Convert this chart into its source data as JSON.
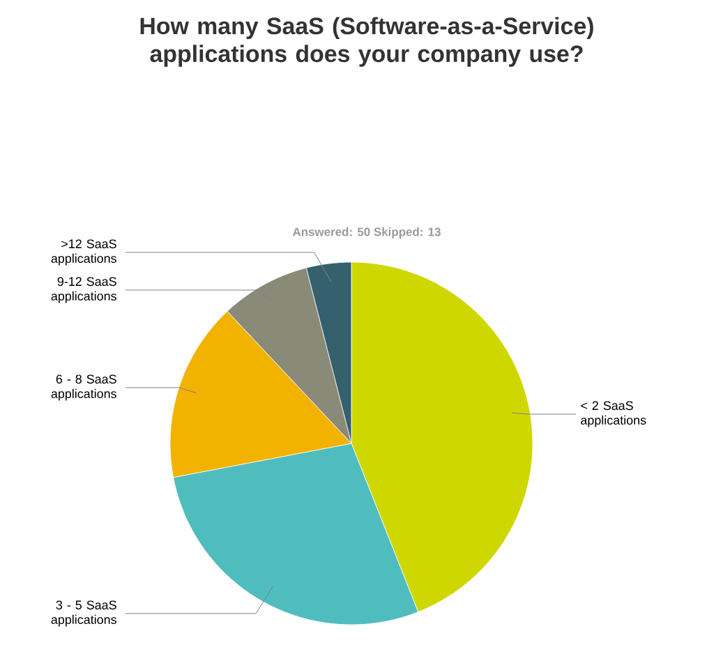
{
  "chart_data": {
    "type": "pie",
    "title": "How many SaaS (Software-as-a-Service) applications does your company use?",
    "subtitle": "Answered: 50   Skipped: 13",
    "categories": [
      "< 2 SaaS applications",
      "3 - 5 SaaS applications",
      "6 - 8 SaaS applications",
      "9-12 SaaS applications",
      ">12 SaaS applications"
    ],
    "values": [
      44,
      28,
      16,
      8,
      4
    ],
    "colors": [
      "#cfd700",
      "#4fbdbe",
      "#f2b200",
      "#8a8a78",
      "#35606e"
    ]
  }
}
